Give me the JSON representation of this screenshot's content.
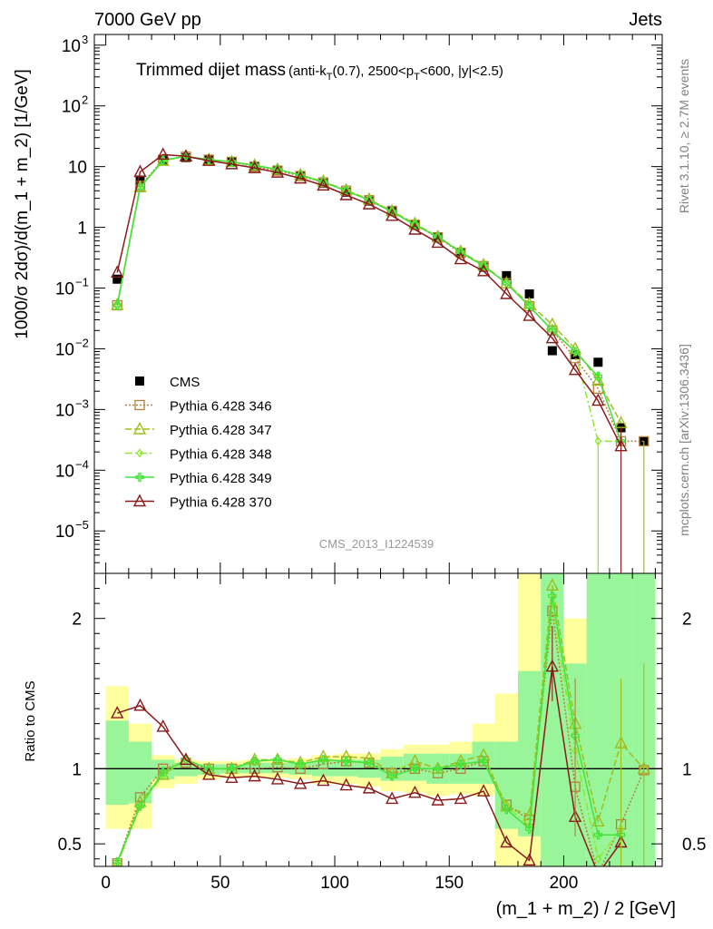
{
  "header": {
    "left": "7000 GeV pp",
    "right": "Jets",
    "rivet": "Rivet 3.1.10, ≥ 2.7M events",
    "mcplots": "mcplots.cern.ch [arXiv:1306.3436]",
    "analysis_id": "CMS_2013_I1224539"
  },
  "main_title": {
    "big": "Trimmed dijet mass",
    "small_pre": "(anti-k",
    "small_sub1": "T",
    "small_mid": "(0.7), 2500<p",
    "small_sub2": "T",
    "small_post": "<600, |y|<2.5)"
  },
  "colors": {
    "cms": "#000000",
    "p346": "#b5803a",
    "p347": "#9fbe1e",
    "p348": "#8de82a",
    "p349": "#44e23c",
    "p370": "#8b1a1a",
    "band_yellow": "#ffff9e",
    "band_green": "#99f599"
  },
  "chart_data": [
    {
      "type": "scatter",
      "panel": "main",
      "ylabel": "1000/σ 2dσ)/d(m_1 + m_2) [1/GeV]",
      "yscale": "log",
      "ylim": [
        2e-06,
        1500
      ],
      "xlim": [
        -5,
        243
      ],
      "yticks": [
        "10^3",
        "10^2",
        "10",
        "1",
        "10^-1",
        "10^-2",
        "10^-3",
        "10^-4",
        "10^-5"
      ],
      "legend_position": "lower-left",
      "series": [
        {
          "name": "CMS",
          "key": "cms",
          "marker": "square-filled",
          "x": [
            5,
            15,
            25,
            35,
            45,
            55,
            65,
            75,
            85,
            95,
            105,
            115,
            125,
            135,
            145,
            155,
            165,
            175,
            185,
            195,
            205,
            215,
            225,
            235
          ],
          "y": [
            0.14,
            6,
            13,
            14,
            13,
            12,
            10,
            8.5,
            7,
            5.3,
            3.8,
            2.7,
            1.9,
            1.1,
            0.7,
            0.38,
            0.22,
            0.16,
            0.08,
            0.0093,
            0.008,
            0.006,
            0.0005,
            0.0003
          ]
        },
        {
          "name": "Pythia 6.428 346",
          "key": "p346",
          "marker": "square-open",
          "dash": "2,2",
          "x": [
            5,
            15,
            25,
            35,
            45,
            55,
            65,
            75,
            85,
            95,
            105,
            115,
            125,
            135,
            145,
            155,
            165,
            175,
            185,
            195,
            205,
            215,
            225,
            235
          ],
          "y": [
            0.052,
            4.8,
            13,
            14.5,
            13,
            12,
            10,
            8.6,
            7,
            5.5,
            4,
            2.8,
            1.85,
            1.1,
            0.68,
            0.38,
            0.23,
            0.12,
            0.05,
            0.02,
            0.007,
            0.0022,
            0.0003,
            0.0003
          ]
        },
        {
          "name": "Pythia 6.428 347",
          "key": "p347",
          "marker": "triangle-open",
          "dash": "7,3",
          "x": [
            5,
            15,
            25,
            35,
            45,
            55,
            65,
            75,
            85,
            95,
            105,
            115,
            125,
            135,
            145,
            155,
            165,
            175,
            185,
            195,
            205,
            215,
            225
          ],
          "y": [
            0.053,
            4.6,
            12.5,
            14.8,
            13,
            12,
            10.5,
            9,
            7.3,
            5.7,
            4.1,
            2.9,
            1.85,
            1.15,
            0.7,
            0.4,
            0.24,
            0.12,
            0.055,
            0.025,
            0.01,
            0.003,
            0.0006
          ]
        },
        {
          "name": "Pythia 6.428 348",
          "key": "p348",
          "marker": "diamond-open",
          "dash": "8,3,2,3",
          "x": [
            5,
            15,
            25,
            35,
            45,
            55,
            65,
            75,
            85,
            95,
            105,
            115,
            125,
            135,
            145,
            155,
            165,
            175,
            185,
            195,
            205,
            215,
            225
          ],
          "y": [
            0.05,
            4.5,
            12.5,
            14.8,
            13,
            12,
            10.5,
            9,
            7.2,
            5.6,
            4,
            2.8,
            1.8,
            1.1,
            0.7,
            0.39,
            0.23,
            0.12,
            0.05,
            0.02,
            0.009,
            0.0003,
            0.0003
          ]
        },
        {
          "name": "Pythia 6.428 349",
          "key": "p349",
          "marker": "cross",
          "dash": "",
          "x": [
            5,
            15,
            25,
            35,
            45,
            55,
            65,
            75,
            85,
            95,
            105,
            115,
            125,
            135,
            145,
            155,
            165,
            175,
            185,
            195,
            205,
            215,
            225
          ],
          "y": [
            0.052,
            4.5,
            12.7,
            14.8,
            13,
            12,
            10.4,
            9,
            7.2,
            5.6,
            4,
            2.8,
            1.8,
            1.1,
            0.7,
            0.39,
            0.23,
            0.12,
            0.05,
            0.02,
            0.009,
            0.0035,
            0.0003
          ]
        },
        {
          "name": "Pythia 6.428 370",
          "key": "p370",
          "marker": "triangle-open",
          "dash": "",
          "x": [
            5,
            15,
            25,
            35,
            45,
            55,
            65,
            75,
            85,
            95,
            105,
            115,
            125,
            135,
            145,
            155,
            165,
            175,
            185,
            195,
            205,
            215,
            225
          ],
          "y": [
            0.18,
            8.2,
            15.8,
            14.8,
            12.5,
            11,
            9.5,
            8,
            6.4,
            4.9,
            3.4,
            2.4,
            1.55,
            0.92,
            0.56,
            0.3,
            0.19,
            0.08,
            0.035,
            0.015,
            0.0045,
            0.0014,
            0.00025
          ]
        }
      ]
    },
    {
      "type": "line",
      "panel": "ratio",
      "xlabel": "(m_1 + m_2) / 2 [GeV]",
      "ylabel": "Ratio to CMS",
      "ylim": [
        0.35,
        2.3
      ],
      "xlim": [
        -5,
        243
      ],
      "xticks": [
        0,
        50,
        100,
        150,
        200
      ],
      "yticks": [
        0.5,
        1,
        2
      ],
      "reference": 1,
      "bands": {
        "edges": [
          0,
          10,
          20,
          30,
          40,
          50,
          60,
          70,
          80,
          90,
          100,
          110,
          120,
          130,
          140,
          150,
          160,
          170,
          180,
          190,
          200,
          210,
          220,
          230,
          240
        ],
        "yellow_lo": [
          0.6,
          0.6,
          0.87,
          0.9,
          0.93,
          0.94,
          0.94,
          0.94,
          0.93,
          0.9,
          0.9,
          0.88,
          0.85,
          0.84,
          0.82,
          0.83,
          0.82,
          0.35,
          0.35,
          0.35,
          0.35,
          0.35,
          0.35,
          0.35
        ],
        "yellow_hi": [
          1.55,
          1.3,
          1.09,
          1.06,
          1.05,
          1.05,
          1.06,
          1.06,
          1.07,
          1.09,
          1.1,
          1.1,
          1.13,
          1.16,
          1.16,
          1.18,
          1.3,
          1.5,
          2.35,
          2.35,
          2.0,
          2.35,
          2.35,
          2.35
        ],
        "green_lo": [
          0.76,
          0.77,
          0.93,
          0.95,
          0.96,
          0.97,
          0.97,
          0.97,
          0.96,
          0.95,
          0.95,
          0.94,
          0.92,
          0.92,
          0.9,
          0.9,
          0.9,
          0.6,
          0.55,
          0.35,
          0.35,
          0.35,
          0.35,
          0.35
        ],
        "green_hi": [
          1.32,
          1.18,
          1.06,
          1.04,
          1.03,
          1.03,
          1.04,
          1.04,
          1.04,
          1.05,
          1.06,
          1.06,
          1.08,
          1.1,
          1.1,
          1.1,
          1.18,
          1.18,
          1.65,
          2.3,
          1.7,
          2.35,
          2.35,
          2.35
        ]
      },
      "series": [
        {
          "key": "p346",
          "name": "Pythia 6.428 346",
          "x": [
            5,
            15,
            25,
            35,
            45,
            55,
            65,
            75,
            85,
            95,
            105,
            115,
            125,
            135,
            145,
            155,
            165,
            175,
            185,
            195,
            205,
            215,
            225,
            235
          ],
          "y": [
            0.37,
            0.81,
            1.0,
            1.04,
            1.0,
            1.0,
            1.0,
            1.01,
            1.0,
            1.03,
            1.05,
            1.04,
            0.97,
            1.0,
            0.97,
            1.0,
            1.05,
            0.76,
            0.66,
            2.05,
            0.88,
            0.3,
            0.63,
            0.99
          ]
        },
        {
          "key": "p347",
          "name": "Pythia 6.428 347",
          "x": [
            5,
            15,
            25,
            35,
            45,
            55,
            65,
            75,
            85,
            95,
            105,
            115,
            125,
            135,
            145,
            155,
            165,
            175,
            185,
            195,
            205,
            215,
            225,
            235
          ],
          "y": [
            0.36,
            0.78,
            0.96,
            1.06,
            1.0,
            1.0,
            1.06,
            1.06,
            1.04,
            1.08,
            1.08,
            1.07,
            0.97,
            1.05,
            1.0,
            1.05,
            1.09,
            0.75,
            0.69,
            2.22,
            1.3,
            0.65,
            1.17,
            1.0
          ]
        },
        {
          "key": "p348",
          "name": "Pythia 6.428 348",
          "x": [
            5,
            15,
            25,
            35,
            45,
            55,
            65,
            75,
            85,
            95,
            105,
            115,
            125,
            135,
            145,
            155,
            165,
            175,
            185,
            195,
            205,
            215,
            225
          ],
          "y": [
            0.36,
            0.75,
            0.96,
            1.06,
            1.0,
            1.0,
            1.05,
            1.06,
            1.03,
            1.06,
            1.05,
            1.04,
            0.95,
            1.0,
            1.0,
            1.03,
            1.05,
            0.75,
            0.62,
            2.1,
            1.12,
            0.4,
            0.6
          ]
        },
        {
          "key": "p349",
          "name": "Pythia 6.428 349",
          "x": [
            5,
            15,
            25,
            35,
            45,
            55,
            65,
            75,
            85,
            95,
            105,
            115,
            125,
            135,
            145,
            155,
            165,
            175,
            185,
            195,
            205,
            215,
            225
          ],
          "y": [
            0.38,
            0.75,
            0.98,
            1.06,
            1.0,
            1.0,
            1.05,
            1.06,
            1.03,
            1.06,
            1.05,
            1.04,
            0.95,
            1.0,
            1.0,
            1.03,
            1.05,
            0.73,
            0.6,
            2.15,
            1.22,
            0.56,
            0.56
          ]
        },
        {
          "key": "p370",
          "name": "Pythia 6.428 370",
          "x": [
            5,
            15,
            25,
            35,
            45,
            55,
            65,
            75,
            85,
            95,
            105,
            115,
            125,
            135,
            145,
            155,
            165,
            175,
            185,
            195,
            205,
            215,
            225
          ],
          "y": [
            1.37,
            1.42,
            1.28,
            1.06,
            0.96,
            0.94,
            0.95,
            0.93,
            0.9,
            0.92,
            0.89,
            0.87,
            0.8,
            0.84,
            0.79,
            0.8,
            0.85,
            0.51,
            0.39,
            1.68,
            0.68,
            0.3,
            0.51
          ]
        }
      ]
    }
  ]
}
